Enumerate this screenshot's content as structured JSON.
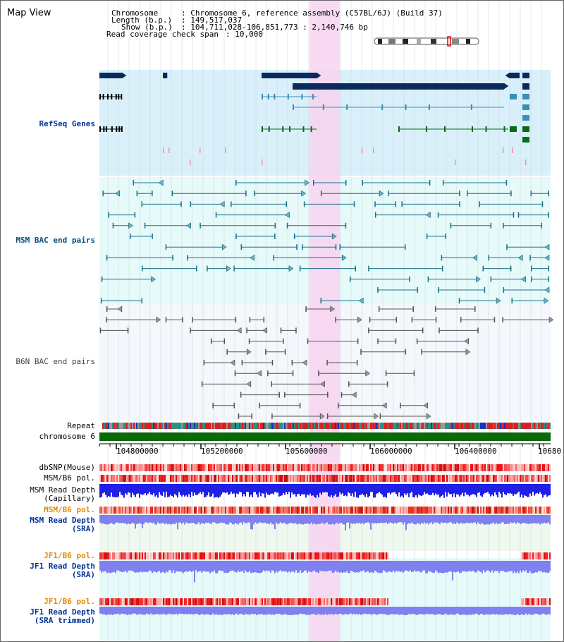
{
  "window_title": "Map View",
  "header": {
    "chromosome_label": "Chromosome",
    "chromosome_value": "Chromosome 6, reference assembly (C57BL/6J) (Build 37)",
    "length_label": "Length (b.p.)",
    "length_value": "149,517,037",
    "show_label": "Show (b.p.)",
    "show_value": "104,711,028-106,851,773 : 2,140,746 bp",
    "coverage_label": "Read coverage check span",
    "coverage_value": "10,000"
  },
  "tracks": {
    "refseq": "RefSeq Genes",
    "msm_bac": "MSM BAC end pairs",
    "b6n_bac": "B6N BAC end pairs",
    "repeat": "Repeat",
    "chromosome": "chromosome 6",
    "dbsnp": "dbSNP(Mouse)",
    "msm_b6_pol_1": "MSM/B6 pol.",
    "msm_read_depth_cap_1": "MSM Read Depth",
    "msm_read_depth_cap_2": "(Capillary)",
    "msm_b6_pol_2": "MSM/B6 pol.",
    "msm_read_depth_sra_1": "MSM Read Depth",
    "msm_read_depth_sra_2": "(SRA)",
    "jf1_b6_pol_1": "JF1/B6 pol.",
    "jf1_read_depth_sra_1": "JF1 Read Depth",
    "jf1_read_depth_sra_2": "(SRA)",
    "jf1_b6_pol_2": "JF1/B6 pol.",
    "jf1_read_depth_trim_1": "JF1 Read Depth",
    "jf1_read_depth_trim_2": "(SRA trimmed)"
  },
  "axis_ticks": [
    "104800000",
    "105200000",
    "105600000",
    "106000000",
    "106400000",
    "10680"
  ],
  "colors": {
    "refseq_bg": "#d9f0fa",
    "bac_bg": "#e6fafa",
    "b6n_bg": "#f4f7fb",
    "highlight": "#f7d4f0",
    "gene_dark": "#0a2a5e",
    "gene_teal": "#3a8fb7",
    "gene_green": "#0a6a1a",
    "chrom_green": "#0a6a0a",
    "depth_blue": "#1f1fe6",
    "depth_soft": "#8080f0",
    "snp_red": "#e83030"
  }
}
